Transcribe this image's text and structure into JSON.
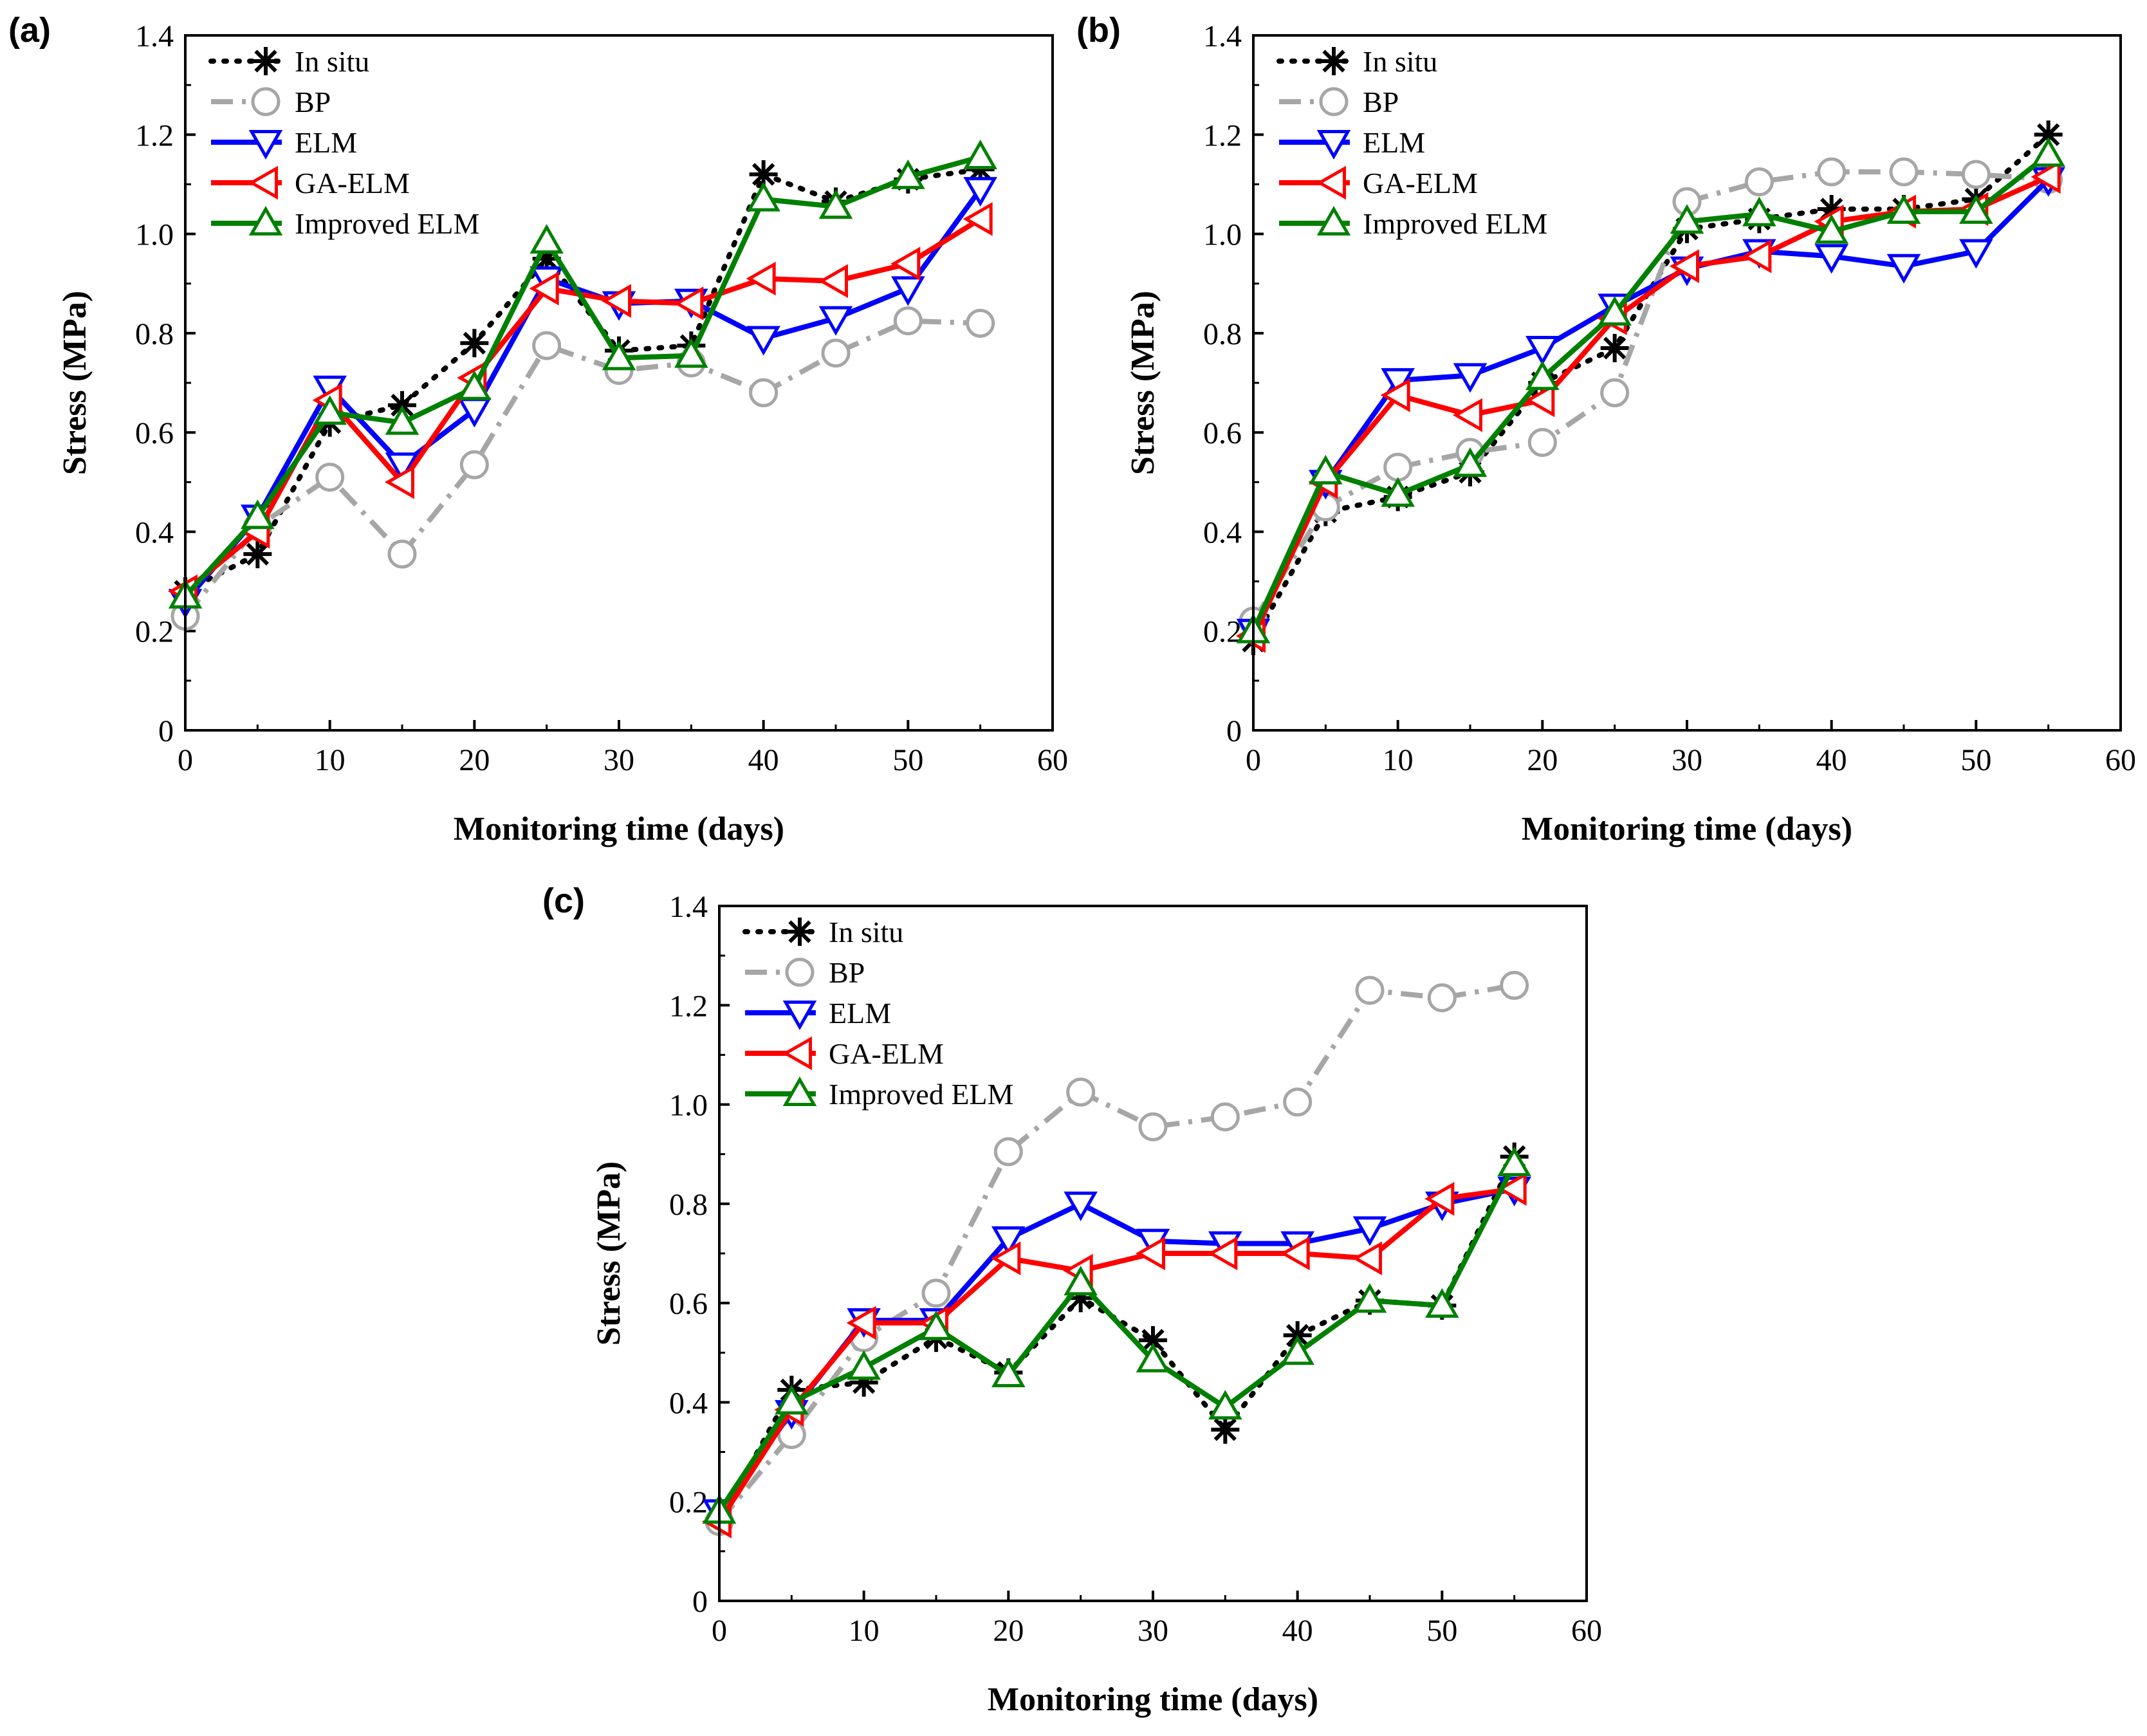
{
  "chart_data": [
    {
      "type": "line",
      "panel_label": "(a)",
      "xlabel": "Monitoring time (days)",
      "ylabel": "Stress (MPa)",
      "xlim": [
        0,
        60
      ],
      "ylim": [
        0,
        1.4
      ],
      "xticks": [
        "0",
        "10",
        "20",
        "30",
        "40",
        "50",
        "60"
      ],
      "yticks": [
        "0",
        "0.2",
        "0.4",
        "0.6",
        "0.8",
        "1.0",
        "1.2",
        "1.4"
      ],
      "legend_position": "top-left",
      "x": [
        0,
        5,
        10,
        15,
        20,
        25,
        30,
        35,
        40,
        45,
        50,
        55
      ],
      "series": [
        {
          "name": "In situ",
          "color": "#000000",
          "marker": "asterisk",
          "style": "dotted",
          "values": [
            0.28,
            0.355,
            0.62,
            0.655,
            0.78,
            0.95,
            0.765,
            0.775,
            1.12,
            1.065,
            1.11,
            1.13
          ]
        },
        {
          "name": "BP",
          "color": "#a6a6a6",
          "marker": "circle",
          "style": "dashdot",
          "values": [
            0.23,
            0.41,
            0.51,
            0.355,
            0.535,
            0.775,
            0.725,
            0.74,
            0.68,
            0.76,
            0.825,
            0.82
          ]
        },
        {
          "name": "ELM",
          "color": "#0000ff",
          "marker": "triangle-down",
          "style": "solid",
          "values": [
            0.26,
            0.43,
            0.69,
            0.535,
            0.645,
            0.91,
            0.86,
            0.865,
            0.79,
            0.83,
            0.89,
            1.09
          ]
        },
        {
          "name": "GA-ELM",
          "color": "#ff0000",
          "marker": "triangle-left",
          "style": "solid",
          "values": [
            0.28,
            0.4,
            0.665,
            0.5,
            0.71,
            0.89,
            0.865,
            0.86,
            0.91,
            0.905,
            0.94,
            1.03
          ]
        },
        {
          "name": "Improved ELM",
          "color": "#008000",
          "marker": "triangle-up",
          "style": "solid",
          "values": [
            0.27,
            0.43,
            0.64,
            0.62,
            0.69,
            0.985,
            0.75,
            0.755,
            1.07,
            1.055,
            1.115,
            1.155
          ]
        }
      ]
    },
    {
      "type": "line",
      "panel_label": "(b)",
      "xlabel": "Monitoring time (days)",
      "ylabel": "Stress (MPa)",
      "xlim": [
        0,
        60
      ],
      "ylim": [
        0,
        1.4
      ],
      "xticks": [
        "0",
        "10",
        "20",
        "30",
        "40",
        "50",
        "60"
      ],
      "yticks": [
        "0",
        "0.2",
        "0.4",
        "0.6",
        "0.8",
        "1.0",
        "1.2",
        "1.4"
      ],
      "legend_position": "top-left",
      "x": [
        0,
        5,
        10,
        15,
        20,
        25,
        30,
        35,
        40,
        45,
        50,
        55
      ],
      "series": [
        {
          "name": "In situ",
          "color": "#000000",
          "marker": "asterisk",
          "style": "dotted",
          "values": [
            0.18,
            0.44,
            0.47,
            0.52,
            0.7,
            0.77,
            1.01,
            1.03,
            1.05,
            1.05,
            1.07,
            1.2
          ]
        },
        {
          "name": "BP",
          "color": "#a6a6a6",
          "marker": "circle",
          "style": "dashdot",
          "values": [
            0.22,
            0.45,
            0.53,
            0.56,
            0.58,
            0.68,
            1.065,
            1.105,
            1.125,
            1.125,
            1.12,
            1.11
          ]
        },
        {
          "name": "ELM",
          "color": "#0000ff",
          "marker": "triangle-down",
          "style": "solid",
          "values": [
            0.2,
            0.5,
            0.705,
            0.715,
            0.77,
            0.855,
            0.93,
            0.965,
            0.955,
            0.935,
            0.965,
            1.11
          ]
        },
        {
          "name": "GA-ELM",
          "color": "#ff0000",
          "marker": "triangle-left",
          "style": "solid",
          "values": [
            0.19,
            0.5,
            0.675,
            0.635,
            0.665,
            0.83,
            0.935,
            0.955,
            1.025,
            1.045,
            1.05,
            1.115
          ]
        },
        {
          "name": "Improved ELM",
          "color": "#008000",
          "marker": "triangle-up",
          "style": "solid",
          "values": [
            0.2,
            0.52,
            0.475,
            0.535,
            0.71,
            0.84,
            1.025,
            1.04,
            1.005,
            1.045,
            1.045,
            1.16
          ]
        }
      ]
    },
    {
      "type": "line",
      "panel_label": "(c)",
      "xlabel": "Monitoring time (days)",
      "ylabel": "Stress (MPa)",
      "xlim": [
        0,
        60
      ],
      "ylim": [
        0,
        1.4
      ],
      "xticks": [
        "0",
        "10",
        "20",
        "30",
        "40",
        "50",
        "60"
      ],
      "yticks": [
        "0",
        "0.2",
        "0.4",
        "0.6",
        "0.8",
        "1.0",
        "1.2",
        "1.4"
      ],
      "legend_position": "top-left",
      "x": [
        0,
        5,
        10,
        15,
        20,
        25,
        30,
        35,
        40,
        45,
        50,
        55
      ],
      "series": [
        {
          "name": "In situ",
          "color": "#000000",
          "marker": "asterisk",
          "style": "dotted",
          "values": [
            0.16,
            0.425,
            0.44,
            0.53,
            0.46,
            0.61,
            0.525,
            0.345,
            0.535,
            0.605,
            0.595,
            0.895
          ]
        },
        {
          "name": "BP",
          "color": "#a6a6a6",
          "marker": "circle",
          "style": "dashdot",
          "values": [
            0.16,
            0.335,
            0.53,
            0.62,
            0.905,
            1.025,
            0.955,
            0.975,
            1.005,
            1.23,
            1.215,
            1.24
          ]
        },
        {
          "name": "ELM",
          "color": "#0000ff",
          "marker": "triangle-down",
          "style": "solid",
          "values": [
            0.18,
            0.38,
            0.565,
            0.565,
            0.73,
            0.8,
            0.725,
            0.72,
            0.72,
            0.75,
            0.8,
            0.83
          ]
        },
        {
          "name": "GA-ELM",
          "color": "#ff0000",
          "marker": "triangle-left",
          "style": "solid",
          "values": [
            0.16,
            0.385,
            0.56,
            0.56,
            0.69,
            0.665,
            0.7,
            0.7,
            0.7,
            0.69,
            0.81,
            0.83
          ]
        },
        {
          "name": "Improved ELM",
          "color": "#008000",
          "marker": "triangle-up",
          "style": "solid",
          "values": [
            0.18,
            0.4,
            0.47,
            0.55,
            0.455,
            0.64,
            0.485,
            0.39,
            0.5,
            0.605,
            0.595,
            0.88
          ]
        }
      ]
    }
  ]
}
